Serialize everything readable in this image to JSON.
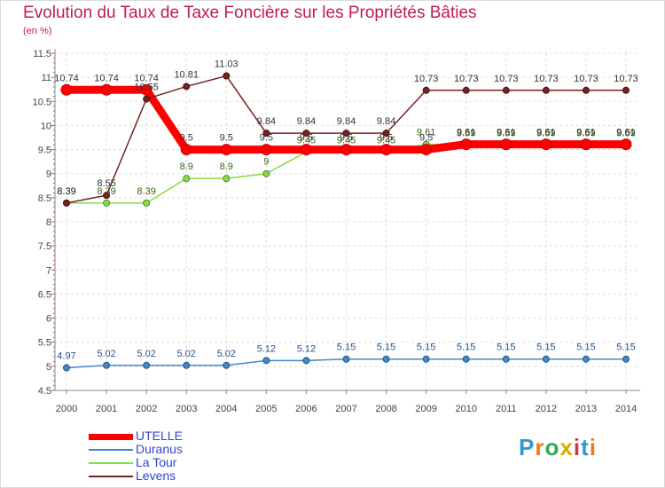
{
  "chart_data": {
    "type": "line",
    "title": "Evolution du Taux de Taxe Foncière sur les Propriétés Bâties",
    "subtitle": "(en %)",
    "xlabel": "",
    "ylabel": "",
    "ylim": [
      4.5,
      11.5
    ],
    "y_ticks": [
      "4.5",
      "5",
      "5.5",
      "6",
      "6.5",
      "7",
      "7.5",
      "8",
      "8.5",
      "9",
      "9.5",
      "10",
      "10.5",
      "11",
      "11.5"
    ],
    "x": [
      "2000",
      "2001",
      "2002",
      "2003",
      "2004",
      "2005",
      "2006",
      "2007",
      "2008",
      "2009",
      "2010",
      "2011",
      "2012",
      "2013",
      "2014"
    ],
    "series": [
      {
        "name": "UTELLE",
        "color": "#ff0000",
        "values": [
          10.74,
          10.74,
          10.74,
          9.5,
          9.5,
          9.5,
          9.5,
          9.5,
          9.5,
          9.5,
          9.61,
          9.61,
          9.61,
          9.61,
          9.61
        ],
        "labels": [
          "10.74",
          "10.74",
          "10.74",
          "9.5",
          "9.5",
          "9.5",
          "9.5",
          "9.5",
          "9.5",
          "9.5",
          "9.61",
          "9.61",
          "9.61",
          "9.61",
          "9.61"
        ]
      },
      {
        "name": "Duranus",
        "color": "#4488cc",
        "values": [
          4.97,
          5.02,
          5.02,
          5.02,
          5.02,
          5.12,
          5.12,
          5.15,
          5.15,
          5.15,
          5.15,
          5.15,
          5.15,
          5.15,
          5.15
        ],
        "labels": [
          "4.97",
          "5.02",
          "5.02",
          "5.02",
          "5.02",
          "5.12",
          "5.12",
          "5.15",
          "5.15",
          "5.15",
          "5.15",
          "5.15",
          "5.15",
          "5.15",
          "5.15"
        ]
      },
      {
        "name": "La Tour",
        "color": "#88dd44",
        "values": [
          8.39,
          8.39,
          8.39,
          8.9,
          8.9,
          9,
          9.45,
          9.45,
          9.45,
          9.61,
          9.59,
          9.59,
          9.59,
          9.59,
          9.59
        ],
        "labels": [
          "8.39",
          "8.39",
          "8.39",
          "8.9",
          "8.9",
          "9",
          "9.45",
          "9.45",
          "9.45",
          "9.61",
          "9.59",
          "9.59",
          "9.59",
          "9.59",
          "9.59"
        ]
      },
      {
        "name": "Levens",
        "color": "#772222",
        "values": [
          8.39,
          8.55,
          10.55,
          10.81,
          11.03,
          9.84,
          9.84,
          9.84,
          9.84,
          10.73,
          10.73,
          10.73,
          10.73,
          10.73,
          10.73
        ],
        "labels": [
          "8.39",
          "8.55",
          "10.55",
          "10.81",
          "11.03",
          "9.84",
          "9.84",
          "9.84",
          "9.84",
          "10.73",
          "10.73",
          "10.73",
          "10.73",
          "10.73",
          "10.73"
        ]
      }
    ],
    "legend_position": "bottom-left"
  },
  "branding": {
    "logo_text": "Proxiti"
  }
}
